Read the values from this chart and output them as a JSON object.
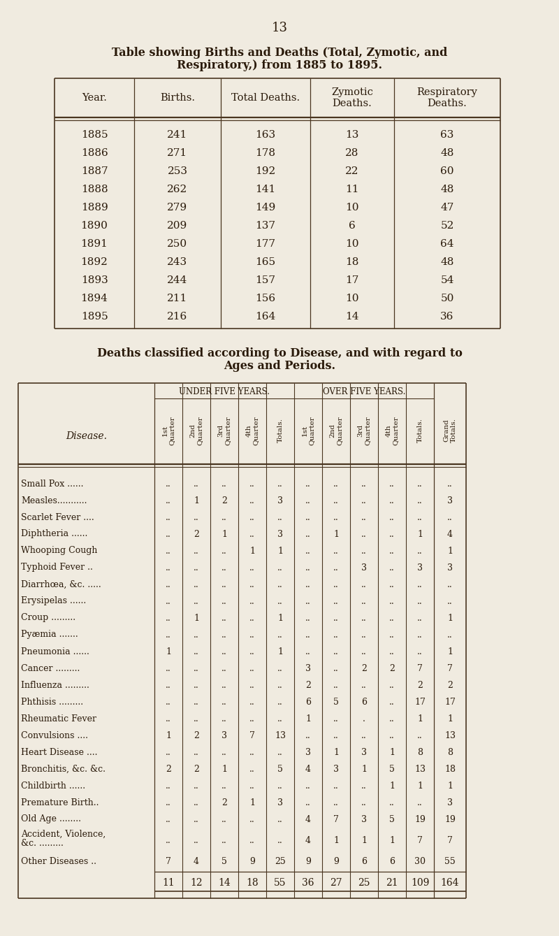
{
  "page_number": "13",
  "bg_color": "#f0ebe0",
  "title1": "Table showing Births and Deaths (Total, Zymotic, and",
  "title2": "Respiratory,) from 1885 to 1895.",
  "table1_headers": [
    "Year.",
    "Births.",
    "Total Deaths.",
    "Zymotic\nDeaths.",
    "Respiratory\nDeaths."
  ],
  "table1_data": [
    [
      "1885",
      "241",
      "163",
      "13",
      "63"
    ],
    [
      "1886",
      "271",
      "178",
      "28",
      "48"
    ],
    [
      "1887",
      "253",
      "192",
      "22",
      "60"
    ],
    [
      "1888",
      "262",
      "141",
      "11",
      "48"
    ],
    [
      "1889",
      "279",
      "149",
      "10",
      "47"
    ],
    [
      "1890",
      "209",
      "137",
      "6",
      "52"
    ],
    [
      "1891",
      "250",
      "177",
      "10",
      "64"
    ],
    [
      "1892",
      "243",
      "165",
      "18",
      "48"
    ],
    [
      "1893",
      "244",
      "157",
      "17",
      "54"
    ],
    [
      "1894",
      "211",
      "156",
      "10",
      "50"
    ],
    [
      "1895",
      "216",
      "164",
      "14",
      "36"
    ]
  ],
  "title3": "Deaths classified according to Disease, and with regard to",
  "title4": "Ages and Periods.",
  "table2_under_label": "UNDER FIVE YEARS.",
  "table2_over_label": "OVER FIVE YEARS.",
  "table2_col_headers": [
    "1st\nQuarter",
    "2nd\nQuarter",
    "3rd\nQuarter",
    "4th\nQuarter",
    "Totals."
  ],
  "table2_grand_label": "Grand\nTotals.",
  "table2_disease_label": "Disease.",
  "table2_diseases": [
    "Small Pox ......",
    "Measles...........",
    "Scarlet Fever ....",
    "Diphtheria ......",
    "Whooping Cough",
    "Typhoid Fever ..",
    "Diarrhœa, &c. .....",
    "Erysipelas ......",
    "Croup .........",
    "Pyæmia .......",
    "Pneumonia ......",
    "Cancer .........",
    "Influenza .........",
    "Phthisis .........",
    "Rheumatic Fever",
    "Convulsions ....",
    "Heart Disease ....",
    "Bronchitis, &c. &c.",
    "Childbirth ......",
    "Premature Birth..",
    "Old Age ........",
    "Accident, Violence,\n    &c. .........",
    "Other Diseases .."
  ],
  "table2_under5": [
    [
      "..",
      "..",
      "..",
      "..",
      ".."
    ],
    [
      "..",
      "1",
      "2",
      "..",
      "3"
    ],
    [
      "..",
      "..",
      "..",
      "..",
      ".."
    ],
    [
      "..",
      "2",
      "1",
      "..",
      "3"
    ],
    [
      "..",
      "..",
      "..",
      "1",
      "1"
    ],
    [
      "..",
      "..",
      "..",
      "..",
      ".."
    ],
    [
      "..",
      "..",
      "..",
      "..",
      ".."
    ],
    [
      "..",
      "..",
      "..",
      "..",
      ".."
    ],
    [
      "..",
      "1",
      "..",
      "..",
      "1"
    ],
    [
      "..",
      "..",
      "..",
      "..",
      ".."
    ],
    [
      "1",
      "..",
      "..",
      "..",
      "1"
    ],
    [
      "..",
      "..",
      "..",
      "..",
      ".."
    ],
    [
      "..",
      "..",
      "..",
      "..",
      ".."
    ],
    [
      "..",
      "..",
      "..",
      "..",
      ".."
    ],
    [
      "..",
      "..",
      "..",
      "..",
      ".."
    ],
    [
      "1",
      "2",
      "3",
      "7",
      "13"
    ],
    [
      "..",
      "..",
      "..",
      "..",
      ".."
    ],
    [
      "2",
      "2",
      "1",
      "..",
      "5"
    ],
    [
      "..",
      "..",
      "..",
      "..",
      ".."
    ],
    [
      "..",
      "..",
      "2",
      "1",
      "3"
    ],
    [
      "..",
      "..",
      "..",
      "..",
      ".."
    ],
    [
      "..",
      "..",
      "..",
      "..",
      ".."
    ],
    [
      "7",
      "4",
      "5",
      "9",
      "25"
    ]
  ],
  "table2_over5": [
    [
      "..",
      "..",
      "..",
      "..",
      ".."
    ],
    [
      "..",
      "..",
      "..",
      "..",
      ".."
    ],
    [
      "..",
      "..",
      "..",
      "..",
      ".."
    ],
    [
      "..",
      "1",
      "..",
      "..",
      "1"
    ],
    [
      "..",
      "..",
      "..",
      "..",
      ".."
    ],
    [
      "..",
      "..",
      "3",
      "..",
      "3"
    ],
    [
      "..",
      "..",
      "..",
      "..",
      ".."
    ],
    [
      "..",
      "..",
      "..",
      "..",
      ".."
    ],
    [
      "..",
      "..",
      "..",
      "..",
      ".."
    ],
    [
      "..",
      "..",
      "..",
      "..",
      ".."
    ],
    [
      "..",
      "..",
      "..",
      "..",
      ".."
    ],
    [
      "3",
      "..",
      "2",
      "2",
      "7"
    ],
    [
      "2",
      "..",
      "..",
      "..",
      "2"
    ],
    [
      "6",
      "5",
      "6",
      "..",
      "17"
    ],
    [
      "1",
      "..",
      ".",
      "..",
      "1"
    ],
    [
      "..",
      "..",
      "..",
      "..",
      ".."
    ],
    [
      "3",
      "1",
      "3",
      "1",
      "8"
    ],
    [
      "4",
      "3",
      "1",
      "5",
      "13"
    ],
    [
      "..",
      "..",
      "..",
      "1",
      "1"
    ],
    [
      "..",
      "..",
      "..",
      "..",
      ".."
    ],
    [
      "4",
      "7",
      "3",
      "5",
      "19"
    ],
    [
      "4",
      "1",
      "1",
      "1",
      "7"
    ],
    [
      "9",
      "9",
      "6",
      "6",
      "30"
    ]
  ],
  "table2_grand": [
    "..",
    "3",
    "..",
    "4",
    "1",
    "3",
    "..",
    "..",
    "1",
    "..",
    "1",
    "7",
    "2",
    "17",
    "1",
    "13",
    "8",
    "18",
    "1",
    "3",
    "19",
    "7",
    "55"
  ],
  "table2_totals": [
    "11",
    "12",
    "14",
    "18",
    "55",
    "36",
    "27",
    "25",
    "21",
    "109",
    "164"
  ],
  "text_color": "#2a1a0a",
  "line_color": "#4a3520"
}
